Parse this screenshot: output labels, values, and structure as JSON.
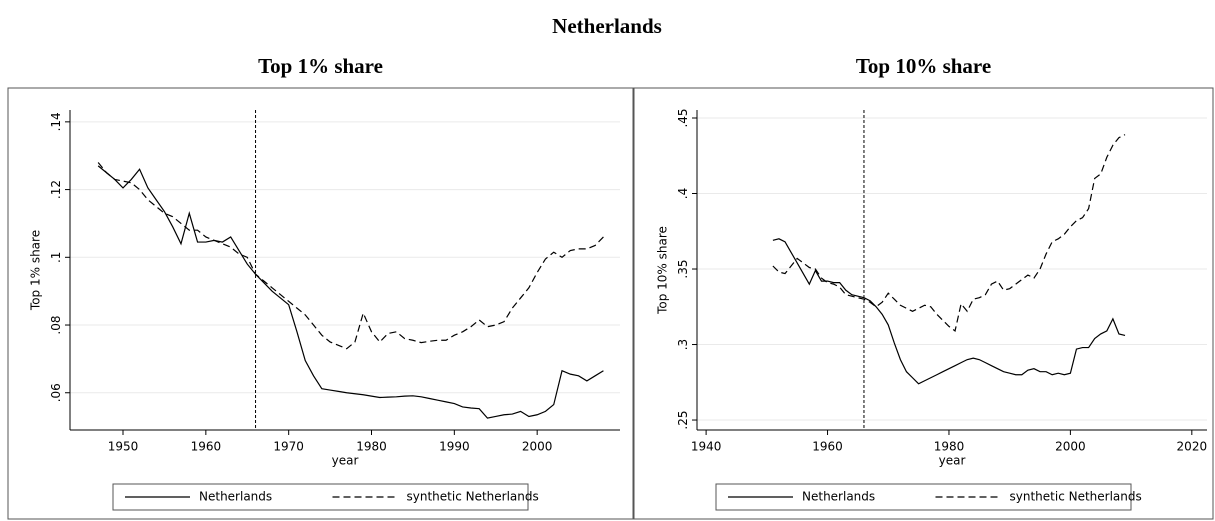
{
  "title": "Netherlands",
  "chart_data": [
    {
      "type": "line",
      "title": "Top 1% share",
      "y_label": "Top 1% share",
      "x_label": "year",
      "x": [
        1947,
        1948,
        1949,
        1950,
        1951,
        1952,
        1953,
        1954,
        1955,
        1956,
        1957,
        1958,
        1959,
        1960,
        1961,
        1962,
        1963,
        1964,
        1965,
        1966,
        1967,
        1968,
        1969,
        1970,
        1971,
        1972,
        1973,
        1974,
        1975,
        1976,
        1977,
        1978,
        1979,
        1980,
        1981,
        1982,
        1983,
        1984,
        1985,
        1986,
        1987,
        1988,
        1989,
        1990,
        1991,
        1992,
        1993,
        1994,
        1995,
        1996,
        1997,
        1998,
        1999,
        2000,
        2001,
        2002,
        2003,
        2004,
        2005,
        2006,
        2007,
        2008
      ],
      "series": [
        {
          "name": "Netherlands",
          "color": "#000000",
          "dash": "solid",
          "values": [
            0.127,
            0.125,
            0.123,
            0.1205,
            0.123,
            0.126,
            0.1205,
            0.117,
            0.1135,
            0.109,
            0.104,
            0.113,
            0.1045,
            0.1045,
            0.105,
            0.1045,
            0.106,
            0.102,
            0.098,
            0.095,
            0.0925,
            0.09,
            0.088,
            0.086,
            0.078,
            0.0695,
            0.065,
            0.0612,
            0.0608,
            0.0604,
            0.06,
            0.0597,
            0.0594,
            0.059,
            0.0586,
            0.0587,
            0.0588,
            0.059,
            0.0591,
            0.0588,
            0.0583,
            0.0578,
            0.0573,
            0.0568,
            0.0558,
            0.0555,
            0.0553,
            0.0525,
            0.053,
            0.0535,
            0.0537,
            0.0545,
            0.053,
            0.0535,
            0.0545,
            0.0565,
            0.0665,
            0.0655,
            0.065,
            0.0635,
            0.065,
            0.0665
          ]
        },
        {
          "name": "synthetic Netherlands",
          "color": "#000000",
          "dash": "dashed",
          "values": [
            0.128,
            0.125,
            0.123,
            0.1225,
            0.122,
            0.12,
            0.117,
            0.115,
            0.113,
            0.112,
            0.11,
            0.108,
            0.108,
            0.106,
            0.105,
            0.104,
            0.103,
            0.101,
            0.1,
            0.095,
            0.093,
            0.091,
            0.089,
            0.087,
            0.085,
            0.083,
            0.08,
            0.077,
            0.075,
            0.074,
            0.073,
            0.075,
            0.0835,
            0.078,
            0.075,
            0.0775,
            0.078,
            0.076,
            0.0755,
            0.0748,
            0.0752,
            0.0755,
            0.0755,
            0.077,
            0.078,
            0.0795,
            0.0815,
            0.0795,
            0.08,
            0.081,
            0.085,
            0.088,
            0.091,
            0.0955,
            0.0995,
            0.1015,
            0.1,
            0.102,
            0.1025,
            0.1025,
            0.1035,
            0.106
          ]
        }
      ],
      "xlim": [
        1943.6,
        2010
      ],
      "xticks": [
        1950,
        1960,
        1970,
        1980,
        1990,
        2000
      ],
      "ylim": [
        0.049,
        0.1435
      ],
      "yticks": [
        {
          "value": 0.06,
          "label": ".06"
        },
        {
          "value": 0.08,
          "label": ".08"
        },
        {
          "value": 0.1,
          "label": ".1"
        },
        {
          "value": 0.12,
          "label": ".12"
        },
        {
          "value": 0.14,
          "label": ".14"
        }
      ],
      "grid": true,
      "vline": 1966,
      "legend": "bottom"
    },
    {
      "type": "line",
      "title": "Top 10% share",
      "y_label": "Top 10% share",
      "x_label": "year",
      "x": [
        1951,
        1952,
        1953,
        1954,
        1955,
        1956,
        1957,
        1958,
        1959,
        1960,
        1961,
        1962,
        1963,
        1964,
        1965,
        1966,
        1967,
        1968,
        1969,
        1970,
        1971,
        1972,
        1973,
        1974,
        1975,
        1976,
        1977,
        1978,
        1979,
        1980,
        1981,
        1982,
        1983,
        1984,
        1985,
        1986,
        1987,
        1988,
        1989,
        1990,
        1991,
        1992,
        1993,
        1994,
        1995,
        1996,
        1997,
        1998,
        1999,
        2000,
        2001,
        2002,
        2003,
        2004,
        2005,
        2006,
        2007,
        2008,
        2009
      ],
      "series": [
        {
          "name": "Netherlands",
          "color": "#000000",
          "dash": "solid",
          "values": [
            0.369,
            0.37,
            0.368,
            0.361,
            0.354,
            0.347,
            0.34,
            0.349,
            0.342,
            0.342,
            0.341,
            0.341,
            0.336,
            0.333,
            0.332,
            0.331,
            0.329,
            0.325,
            0.32,
            0.313,
            0.301,
            0.29,
            0.282,
            0.278,
            0.274,
            0.276,
            0.278,
            0.28,
            0.282,
            0.284,
            0.286,
            0.288,
            0.29,
            0.291,
            0.29,
            0.288,
            0.286,
            0.284,
            0.282,
            0.281,
            0.28,
            0.28,
            0.283,
            0.284,
            0.282,
            0.282,
            0.28,
            0.281,
            0.28,
            0.281,
            0.297,
            0.298,
            0.298,
            0.304,
            0.307,
            0.309,
            0.317,
            0.307,
            0.306
          ]
        },
        {
          "name": "synthetic Netherlands",
          "color": "#000000",
          "dash": "dashed",
          "values": [
            0.352,
            0.348,
            0.347,
            0.352,
            0.357,
            0.354,
            0.351,
            0.35,
            0.344,
            0.341,
            0.34,
            0.338,
            0.333,
            0.332,
            0.331,
            0.33,
            0.328,
            0.325,
            0.328,
            0.334,
            0.33,
            0.326,
            0.324,
            0.322,
            0.324,
            0.326,
            0.325,
            0.32,
            0.316,
            0.312,
            0.309,
            0.327,
            0.322,
            0.33,
            0.331,
            0.333,
            0.34,
            0.342,
            0.336,
            0.337,
            0.34,
            0.343,
            0.346,
            0.344,
            0.35,
            0.36,
            0.368,
            0.37,
            0.373,
            0.378,
            0.382,
            0.384,
            0.39,
            0.41,
            0.413,
            0.424,
            0.432,
            0.437,
            0.439
          ]
        }
      ],
      "xlim": [
        1938.5,
        2022.5
      ],
      "xticks": [
        1940,
        1960,
        1980,
        2000,
        2020
      ],
      "ylim": [
        0.2434,
        0.4553
      ],
      "yticks": [
        {
          "value": 0.25,
          "label": ".25"
        },
        {
          "value": 0.3,
          "label": ".3"
        },
        {
          "value": 0.35,
          "label": ".35"
        },
        {
          "value": 0.4,
          "label": ".4"
        },
        {
          "value": 0.45,
          "label": ".45"
        }
      ],
      "grid": true,
      "vline": 1966,
      "legend": "bottom"
    }
  ]
}
